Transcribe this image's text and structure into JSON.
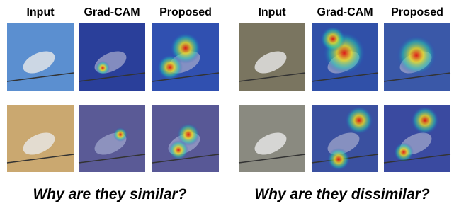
{
  "panels": [
    {
      "headers": [
        "Input",
        "Grad-CAM",
        "Proposed"
      ],
      "caption": "Why are they similar?"
    },
    {
      "headers": [
        "Input",
        "Grad-CAM",
        "Proposed"
      ],
      "caption": "Why are they dissimilar?"
    }
  ]
}
